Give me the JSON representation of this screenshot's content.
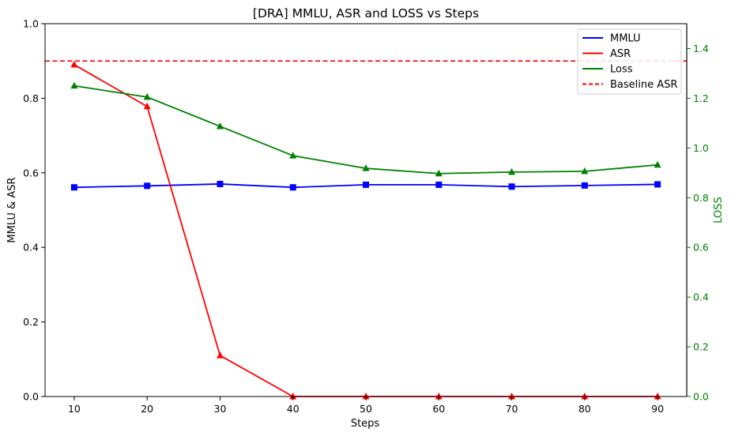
{
  "chart_data": {
    "type": "line",
    "title": "[DRA] MMLU, ASR and LOSS vs Steps",
    "xlabel": "Steps",
    "ylabel": "MMLU & ASR",
    "y2label": "LOSS",
    "x": [
      10,
      20,
      30,
      40,
      50,
      60,
      70,
      80,
      90
    ],
    "xlim": [
      6,
      94
    ],
    "ylim": [
      0,
      1.0
    ],
    "y2lim": [
      0,
      1.5
    ],
    "xticks": [
      "10",
      "20",
      "30",
      "40",
      "50",
      "60",
      "70",
      "80",
      "90"
    ],
    "yticks": [
      "0.0",
      "0.2",
      "0.4",
      "0.6",
      "0.8",
      "1.0"
    ],
    "y2ticks": [
      "0.0",
      "0.2",
      "0.4",
      "0.6",
      "0.8",
      "1.0",
      "1.2",
      "1.4"
    ],
    "series": [
      {
        "name": "MMLU",
        "axis": "left",
        "color": "#0000ff",
        "marker": "square",
        "values": [
          0.561,
          0.565,
          0.57,
          0.561,
          0.568,
          0.568,
          0.563,
          0.566,
          0.569
        ]
      },
      {
        "name": "ASR",
        "axis": "left",
        "color": "#ff0000",
        "marker": "triangle",
        "values": [
          0.89,
          0.778,
          0.11,
          0.0,
          0.0,
          0.0,
          0.0,
          0.0,
          0.0
        ]
      },
      {
        "name": "Loss",
        "axis": "right",
        "color": "#008000",
        "marker": "triangle",
        "values": [
          1.25,
          1.205,
          1.087,
          0.969,
          0.918,
          0.897,
          0.903,
          0.906,
          0.932
        ]
      }
    ],
    "baseline": {
      "name": "Baseline ASR",
      "value": 0.9,
      "color": "#ff0000",
      "style": "dashed"
    },
    "legend": {
      "position": "top-right",
      "entries": [
        {
          "label": "MMLU",
          "color": "#0000ff",
          "style": "solid"
        },
        {
          "label": "ASR",
          "color": "#ff0000",
          "style": "solid"
        },
        {
          "label": "Loss",
          "color": "#008000",
          "style": "solid"
        },
        {
          "label": "Baseline ASR",
          "color": "#ff0000",
          "style": "dashed"
        }
      ]
    },
    "right_axis_color": "#008000",
    "grid": false
  }
}
